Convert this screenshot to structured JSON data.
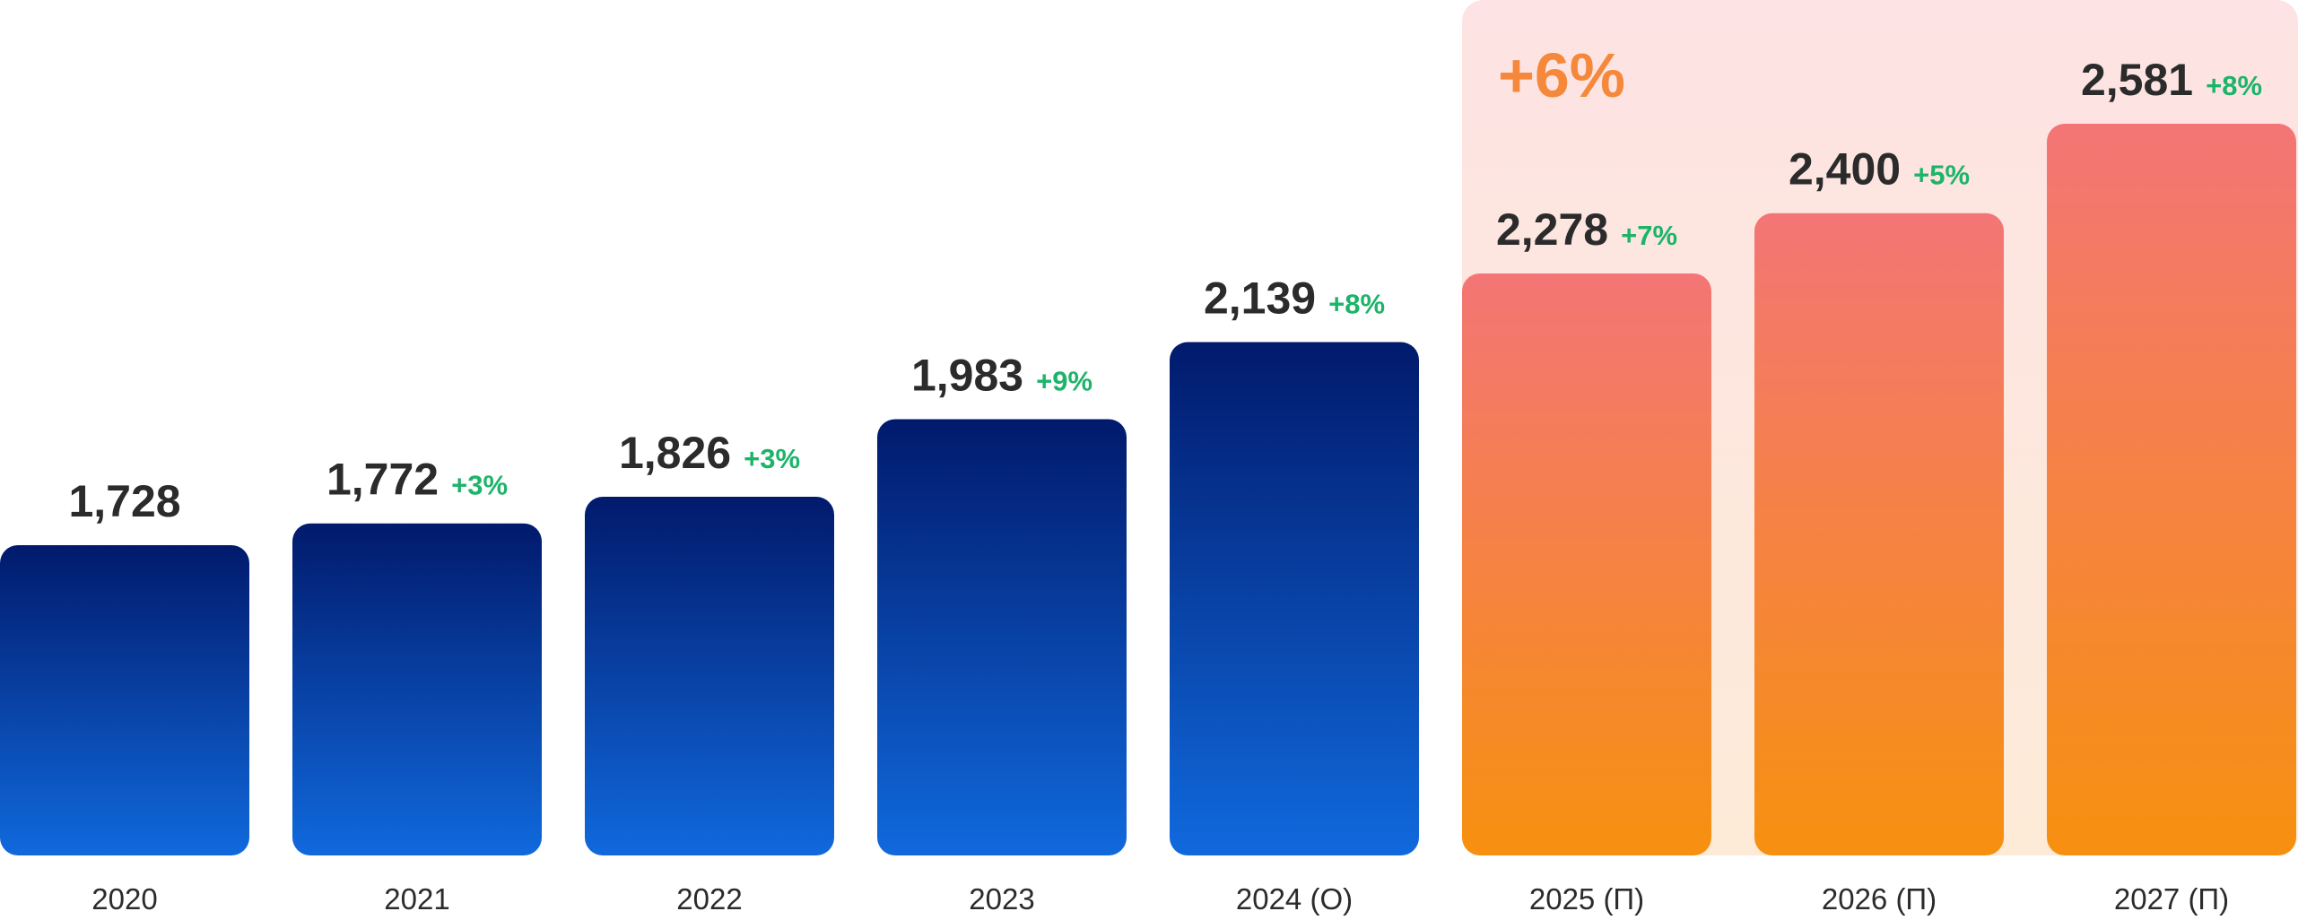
{
  "colors": {
    "actual_top": "#011a6c",
    "actual_bottom": "#1069dd",
    "forecast_top": "#f47576",
    "forecast_bottom": "#f7900f",
    "forecast_band_top": "#fde3e3",
    "forecast_band_bottom": "#fdebd8",
    "badge": "#f5883a",
    "change": "#1db46a",
    "value": "#2b2b2b"
  },
  "forecast_badge": "+6%",
  "chart_data": {
    "type": "bar",
    "categories": [
      "2020",
      "2021",
      "2022",
      "2023",
      "2024 (O)",
      "2025 (П)",
      "2026 (П)",
      "2027 (П)"
    ],
    "values": [
      1728,
      1772,
      1826,
      1983,
      2139,
      2278,
      2400,
      2581
    ],
    "value_labels": [
      "1,728",
      "1,772",
      "1,826",
      "1,983",
      "2,139",
      "2,278",
      "2,400",
      "2,581"
    ],
    "change_labels": [
      "",
      "+3%",
      "+3%",
      "+9%",
      "+8%",
      "+7%",
      "+5%",
      "+8%"
    ],
    "forecast_from_index": 5,
    "ylim": [
      1100,
      2650
    ],
    "grid": false,
    "legend": "none"
  }
}
